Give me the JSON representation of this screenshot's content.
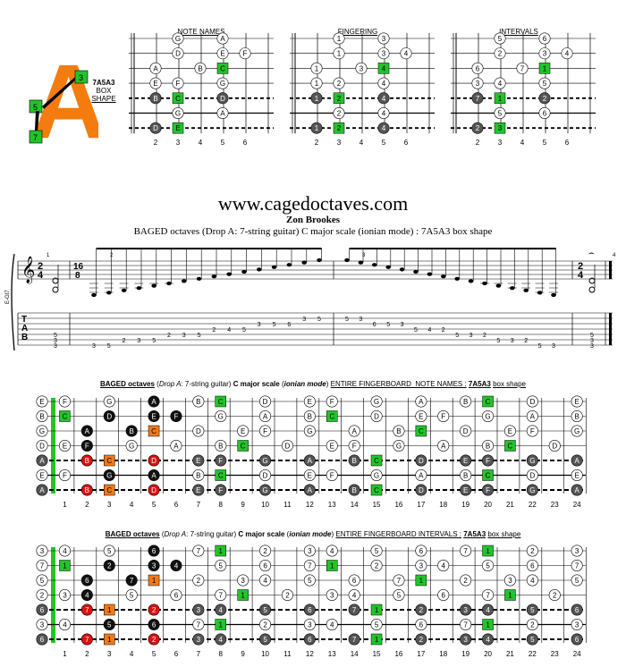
{
  "logo": {
    "letter": "A",
    "box_top": "3",
    "box_mid": "5",
    "box_bot": "7",
    "label_line1": "7A5A3",
    "label_line2": "BOX",
    "label_line3": "SHAPE"
  },
  "small_diagrams": [
    {
      "title": "NOTE NAMES",
      "rows": [
        [
          "",
          "G",
          "",
          "A",
          ""
        ],
        [
          "",
          "D",
          "",
          "E",
          "F"
        ],
        [
          "A",
          "",
          "B",
          "C",
          ""
        ],
        [
          "E",
          "F",
          "",
          "G",
          ""
        ],
        [
          "B",
          "C",
          "",
          "D",
          ""
        ],
        [
          "",
          "G",
          "",
          "A",
          ""
        ],
        [
          "D",
          "E",
          "",
          "",
          ""
        ]
      ]
    },
    {
      "title": "FINGERING",
      "rows": [
        [
          "",
          "1",
          "",
          "3",
          ""
        ],
        [
          "",
          "1",
          "",
          "3",
          "4"
        ],
        [
          "1",
          "",
          "3",
          "4",
          ""
        ],
        [
          "1",
          "2",
          "",
          "4",
          ""
        ],
        [
          "1",
          "2",
          "",
          "4",
          ""
        ],
        [
          "",
          "2",
          "",
          "4",
          ""
        ],
        [
          "1",
          "2",
          "",
          "4",
          ""
        ]
      ]
    },
    {
      "title": "INTERVALS",
      "rows": [
        [
          "",
          "5",
          "",
          "6",
          ""
        ],
        [
          "",
          "2",
          "",
          "3",
          "4"
        ],
        [
          "6",
          "",
          "7",
          "1",
          ""
        ],
        [
          "3",
          "4",
          "",
          "5",
          ""
        ],
        [
          "7",
          "1",
          "",
          "2",
          ""
        ],
        [
          "",
          "5",
          "",
          "6",
          ""
        ],
        [
          "2",
          "3",
          "",
          "",
          ""
        ]
      ]
    }
  ],
  "small_fret_numbers": [
    "2",
    "3",
    "4",
    "5",
    "6"
  ],
  "site": "www.cagedoctaves.com",
  "author": "Zon Brookes",
  "subtitle": "BAGED octaves (Drop A: 7-string guitar) C major scale (ionian mode) : 7A5A3 box shape",
  "score": {
    "time_sig_top": "2",
    "time_sig_bottom": "4",
    "mid_sig_top": "16",
    "mid_sig_bottom": "8",
    "measure_numbers": [
      "1",
      "2",
      "3",
      "4"
    ],
    "instrument": "E-Gt7",
    "tab_letters": [
      "T",
      "A",
      "B"
    ],
    "tab_m1": [
      [
        "",
        "5"
      ],
      [
        "",
        "3"
      ],
      [
        "",
        "3"
      ]
    ],
    "tab_m2": [
      {
        "s": 7,
        "f": "3"
      },
      {
        "s": 7,
        "f": "5"
      },
      {
        "s": 6,
        "f": "2"
      },
      {
        "s": 6,
        "f": "3"
      },
      {
        "s": 6,
        "f": "5"
      },
      {
        "s": 5,
        "f": "2"
      },
      {
        "s": 5,
        "f": "3"
      },
      {
        "s": 5,
        "f": "5"
      },
      {
        "s": 4,
        "f": "2"
      },
      {
        "s": 4,
        "f": "4"
      },
      {
        "s": 4,
        "f": "5"
      },
      {
        "s": 3,
        "f": "3"
      },
      {
        "s": 3,
        "f": "5"
      },
      {
        "s": 3,
        "f": "6"
      },
      {
        "s": 2,
        "f": "3"
      },
      {
        "s": 2,
        "f": "5"
      }
    ],
    "tab_m3": [
      {
        "s": 2,
        "f": "5"
      },
      {
        "s": 2,
        "f": "3"
      },
      {
        "s": 3,
        "f": "6"
      },
      {
        "s": 3,
        "f": "5"
      },
      {
        "s": 3,
        "f": "3"
      },
      {
        "s": 4,
        "f": "5"
      },
      {
        "s": 4,
        "f": "4"
      },
      {
        "s": 4,
        "f": "2"
      },
      {
        "s": 5,
        "f": "5"
      },
      {
        "s": 5,
        "f": "3"
      },
      {
        "s": 5,
        "f": "2"
      },
      {
        "s": 6,
        "f": "5"
      },
      {
        "s": 6,
        "f": "3"
      },
      {
        "s": 6,
        "f": "2"
      },
      {
        "s": 7,
        "f": "5"
      },
      {
        "s": 7,
        "f": "3"
      }
    ],
    "tab_m3_extra": [
      {
        "s": 6,
        "f": "5"
      },
      {
        "s": 6,
        "f": "3"
      },
      {
        "s": 6,
        "f": "2"
      }
    ],
    "tab_m4": [
      "5",
      "3",
      "3"
    ]
  },
  "fb1": {
    "title_parts": [
      "BAGED octaves",
      "(",
      "Drop A",
      ": 7-string guitar)",
      "C major scale",
      "(",
      "ionian mode",
      ")",
      "ENTIRE FINGERBOARD  NOTE NAMES :",
      "7A5A3",
      "box shape"
    ],
    "open": [
      "E",
      "B",
      "G",
      "D",
      "A",
      "E",
      "A"
    ],
    "rows": [
      [
        "F",
        "",
        "G",
        "",
        "A",
        "",
        "B",
        "C",
        "",
        "D",
        "",
        "E",
        "F",
        "",
        "G",
        "",
        "A",
        "",
        "B",
        "C",
        "",
        "D",
        "",
        "E"
      ],
      [
        "C",
        "",
        "D",
        "",
        "E",
        "F",
        "",
        "G",
        "",
        "A",
        "",
        "B",
        "C",
        "",
        "D",
        "",
        "E",
        "F",
        "",
        "G",
        "",
        "A",
        "",
        "B"
      ],
      [
        "",
        "A",
        "",
        "B",
        "C",
        "",
        "D",
        "",
        "E",
        "F",
        "",
        "G",
        "",
        "A",
        "",
        "B",
        "C",
        "",
        "D",
        "",
        "E",
        "F",
        "",
        "G"
      ],
      [
        "E",
        "F",
        "",
        "G",
        "",
        "A",
        "",
        "B",
        "C",
        "",
        "D",
        "",
        "E",
        "F",
        "",
        "G",
        "",
        "A",
        "",
        "B",
        "C",
        "",
        "D",
        ""
      ],
      [
        "",
        "B",
        "C",
        "",
        "D",
        "",
        "E",
        "F",
        "",
        "G",
        "",
        "A",
        "",
        "B",
        "C",
        "",
        "D",
        "",
        "E",
        "F",
        "",
        "G",
        "",
        "A"
      ],
      [
        "F",
        "",
        "G",
        "",
        "A",
        "",
        "B",
        "C",
        "",
        "D",
        "",
        "E",
        "F",
        "",
        "G",
        "",
        "A",
        "",
        "B",
        "C",
        "",
        "D",
        "",
        "E"
      ],
      [
        "",
        "B",
        "C",
        "",
        "D",
        "",
        "E",
        "F",
        "",
        "G",
        "",
        "A",
        "",
        "B",
        "C",
        "",
        "D",
        "",
        "E",
        "F",
        "",
        "G",
        "",
        "A"
      ]
    ]
  },
  "fb2": {
    "title_parts": [
      "BAGED octaves",
      "(",
      "Drop A",
      ": 7-string guitar)",
      "C major scale",
      "(",
      "ionian mode",
      ")",
      "ENTIRE FINGERBOARD INTERVALS :",
      "7A5A3",
      "box shape"
    ],
    "open": [
      "3",
      "7",
      "5",
      "2",
      "6",
      "3",
      "6"
    ],
    "rows": [
      [
        "4",
        "",
        "5",
        "",
        "6",
        "",
        "7",
        "1",
        "",
        "2",
        "",
        "3",
        "4",
        "",
        "5",
        "",
        "6",
        "",
        "7",
        "1",
        "",
        "2",
        "",
        "3"
      ],
      [
        "1",
        "",
        "2",
        "",
        "3",
        "4",
        "",
        "5",
        "",
        "6",
        "",
        "7",
        "1",
        "",
        "2",
        "",
        "3",
        "4",
        "",
        "5",
        "",
        "6",
        "",
        "7"
      ],
      [
        "",
        "6",
        "",
        "7",
        "1",
        "",
        "2",
        "",
        "3",
        "4",
        "",
        "5",
        "",
        "6",
        "",
        "7",
        "1",
        "",
        "2",
        "",
        "3",
        "4",
        "",
        "5"
      ],
      [
        "3",
        "4",
        "",
        "5",
        "",
        "6",
        "",
        "7",
        "1",
        "",
        "2",
        "",
        "3",
        "4",
        "",
        "5",
        "",
        "6",
        "",
        "7",
        "1",
        "",
        "2",
        ""
      ],
      [
        "",
        "7",
        "1",
        "",
        "2",
        "",
        "3",
        "4",
        "",
        "5",
        "",
        "6",
        "",
        "7",
        "1",
        "",
        "2",
        "",
        "3",
        "4",
        "",
        "5",
        "",
        "6"
      ],
      [
        "4",
        "",
        "5",
        "",
        "6",
        "",
        "7",
        "1",
        "",
        "2",
        "",
        "3",
        "4",
        "",
        "5",
        "",
        "6",
        "",
        "7",
        "1",
        "",
        "2",
        "",
        "3"
      ],
      [
        "",
        "7",
        "1",
        "",
        "2",
        "",
        "3",
        "4",
        "",
        "5",
        "",
        "6",
        "",
        "7",
        "1",
        "",
        "2",
        "",
        "3",
        "4",
        "",
        "5",
        "",
        "6"
      ]
    ]
  },
  "fb_fret_numbers": [
    "1",
    "2",
    "3",
    "4",
    "5",
    "6",
    "7",
    "8",
    "9",
    "10",
    "11",
    "12",
    "13",
    "14",
    "15",
    "16",
    "17",
    "18",
    "19",
    "20",
    "21",
    "22",
    "23",
    "24"
  ],
  "colors": {
    "green": "#22c42a",
    "orange": "#f07a1a",
    "red": "#e01010",
    "black": "#111111",
    "dark": "#555555",
    "logo": "#f47c0e"
  }
}
